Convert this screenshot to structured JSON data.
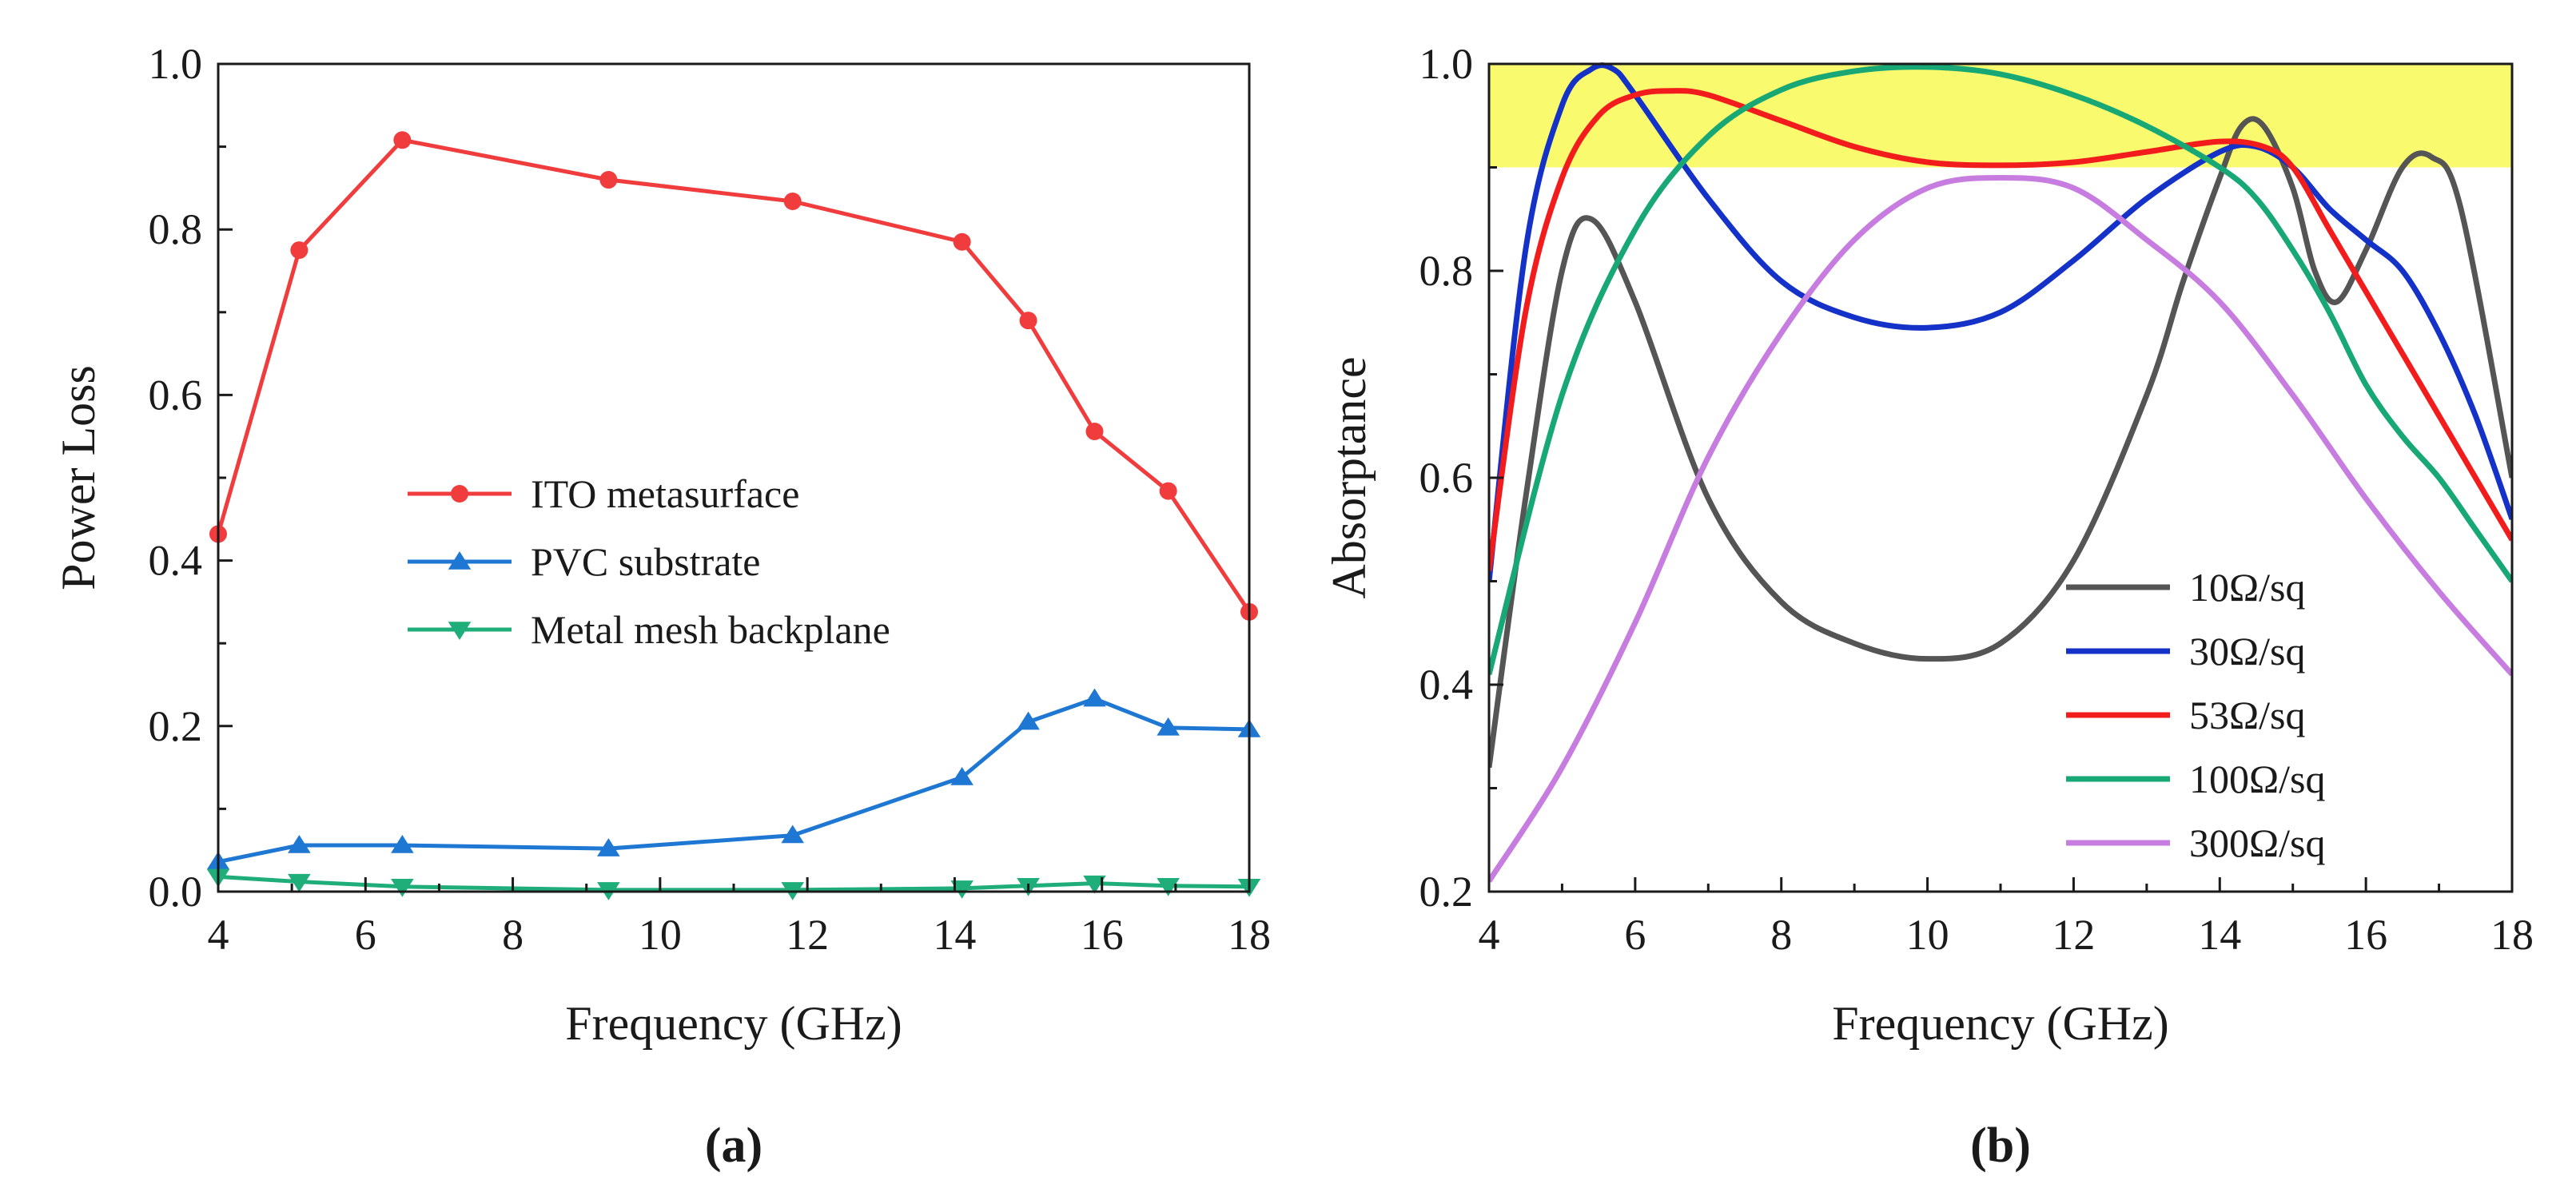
{
  "chart_data": [
    {
      "id": "a",
      "panel_label": "(a)",
      "type": "line",
      "xlabel": "Frequency (GHz)",
      "ylabel": "Power Loss",
      "xlim": [
        4,
        18
      ],
      "ylim": [
        0.0,
        1.0
      ],
      "xticks": [
        4,
        6,
        8,
        10,
        12,
        14,
        16,
        18
      ],
      "yticks": [
        0.0,
        0.2,
        0.4,
        0.6,
        0.8,
        1.0
      ],
      "xtick_labels": [
        "4",
        "6",
        "8",
        "10",
        "12",
        "14",
        "16",
        "18"
      ],
      "ytick_labels": [
        "0.0",
        "0.2",
        "0.4",
        "0.6",
        "0.8",
        "1.0"
      ],
      "legend_position": "center",
      "series": [
        {
          "name": "ITO metasurface",
          "color": "#f03c3c",
          "marker": "circle",
          "x": [
            4.0,
            5.1,
            6.5,
            9.3,
            11.8,
            14.1,
            15.0,
            15.9,
            16.9,
            18.0
          ],
          "y": [
            0.432,
            0.775,
            0.908,
            0.86,
            0.834,
            0.785,
            0.69,
            0.556,
            0.484,
            0.338
          ]
        },
        {
          "name": "PVC substrate",
          "color": "#1f77d4",
          "marker": "triangle-up",
          "x": [
            4.0,
            5.1,
            6.5,
            9.3,
            11.8,
            14.1,
            15.0,
            15.9,
            16.9,
            18.0
          ],
          "y": [
            0.036,
            0.056,
            0.056,
            0.052,
            0.068,
            0.138,
            0.205,
            0.233,
            0.198,
            0.196
          ]
        },
        {
          "name": "Metal mesh backplane",
          "color": "#1fae7a",
          "marker": "triangle-down",
          "x": [
            4.0,
            5.1,
            6.5,
            9.3,
            11.8,
            14.1,
            15.0,
            15.9,
            16.9,
            18.0
          ],
          "y": [
            0.018,
            0.012,
            0.006,
            0.002,
            0.002,
            0.004,
            0.007,
            0.01,
            0.007,
            0.006
          ]
        }
      ]
    },
    {
      "id": "b",
      "panel_label": "(b)",
      "type": "line",
      "xlabel": "Frequency (GHz)",
      "ylabel": "Absorptance",
      "xlim": [
        4,
        18
      ],
      "ylim": [
        0.2,
        1.0
      ],
      "xticks": [
        4,
        6,
        8,
        10,
        12,
        14,
        16,
        18
      ],
      "yticks": [
        0.2,
        0.4,
        0.6,
        0.8,
        1.0
      ],
      "xtick_labels": [
        "4",
        "6",
        "8",
        "10",
        "12",
        "14",
        "16",
        "18"
      ],
      "ytick_labels": [
        "0.2",
        "0.4",
        "0.6",
        "0.8",
        "1.0"
      ],
      "legend_position": "bottom-right",
      "highlight_band": {
        "y0": 0.9,
        "y1": 1.0,
        "color": "#fafa6e"
      },
      "series": [
        {
          "name": "10Ω/sq",
          "color": "#555555",
          "x": [
            4.0,
            4.5,
            5.0,
            5.4,
            6.0,
            7.0,
            8.0,
            9.0,
            10.0,
            11.0,
            12.0,
            13.0,
            13.5,
            14.0,
            14.3,
            14.6,
            15.0,
            15.3,
            15.6,
            16.0,
            16.5,
            16.9,
            17.3,
            18.0
          ],
          "y": [
            0.32,
            0.58,
            0.8,
            0.85,
            0.77,
            0.58,
            0.48,
            0.44,
            0.425,
            0.44,
            0.52,
            0.68,
            0.79,
            0.89,
            0.94,
            0.94,
            0.88,
            0.8,
            0.77,
            0.82,
            0.9,
            0.91,
            0.86,
            0.6
          ]
        },
        {
          "name": "30Ω/sq",
          "color": "#1431c8",
          "x": [
            4.0,
            4.5,
            5.0,
            5.4,
            5.7,
            6.0,
            7.0,
            8.0,
            9.0,
            10.0,
            11.0,
            12.0,
            13.0,
            14.0,
            14.5,
            15.0,
            15.5,
            16.0,
            16.5,
            17.0,
            17.5,
            18.0
          ],
          "y": [
            0.5,
            0.82,
            0.96,
            0.995,
            0.995,
            0.97,
            0.87,
            0.79,
            0.755,
            0.745,
            0.76,
            0.81,
            0.87,
            0.915,
            0.92,
            0.9,
            0.86,
            0.83,
            0.8,
            0.74,
            0.66,
            0.56
          ]
        },
        {
          "name": "53Ω/sq",
          "color": "#f21c1c",
          "x": [
            4.0,
            4.5,
            5.0,
            5.5,
            6.0,
            6.5,
            7.0,
            8.0,
            9.0,
            10.0,
            11.0,
            12.0,
            13.0,
            14.0,
            14.6,
            15.0,
            15.5,
            16.0,
            16.5,
            17.0,
            17.5,
            18.0
          ],
          "y": [
            0.51,
            0.76,
            0.89,
            0.95,
            0.97,
            0.974,
            0.97,
            0.945,
            0.92,
            0.905,
            0.902,
            0.905,
            0.915,
            0.925,
            0.92,
            0.9,
            0.84,
            0.78,
            0.72,
            0.66,
            0.6,
            0.54
          ]
        },
        {
          "name": "100Ω/sq",
          "color": "#17a876",
          "x": [
            4.0,
            5.0,
            6.0,
            7.0,
            8.0,
            9.0,
            10.0,
            11.0,
            12.0,
            13.0,
            14.0,
            14.5,
            15.0,
            15.5,
            16.0,
            16.5,
            17.0,
            17.5,
            18.0
          ],
          "y": [
            0.41,
            0.68,
            0.84,
            0.93,
            0.975,
            0.993,
            0.997,
            0.99,
            0.97,
            0.94,
            0.9,
            0.87,
            0.82,
            0.76,
            0.69,
            0.64,
            0.6,
            0.55,
            0.5
          ]
        },
        {
          "name": "300Ω/sq",
          "color": "#c77de0",
          "x": [
            4.0,
            5.0,
            6.0,
            7.0,
            8.0,
            9.0,
            10.0,
            11.0,
            12.0,
            13.0,
            14.0,
            15.0,
            16.0,
            17.0,
            18.0
          ],
          "y": [
            0.21,
            0.32,
            0.46,
            0.62,
            0.74,
            0.83,
            0.88,
            0.89,
            0.88,
            0.83,
            0.77,
            0.68,
            0.58,
            0.49,
            0.41
          ]
        }
      ]
    }
  ]
}
